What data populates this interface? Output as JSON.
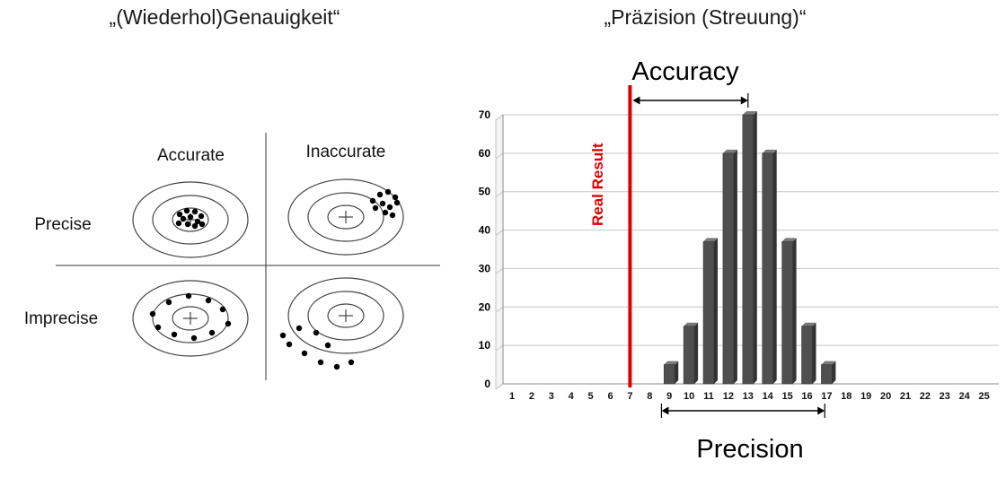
{
  "left_panel": {
    "title": "„(Wiederhol)Genauigkeit“",
    "columns": [
      {
        "label": "Accurate"
      },
      {
        "label": "Inaccurate"
      }
    ],
    "rows": [
      {
        "label": "Precise"
      },
      {
        "label": "Imprecise"
      }
    ],
    "targets": [
      {
        "name": "precise-accurate",
        "dots": [
          [
            -12,
            -6
          ],
          [
            -4,
            -10
          ],
          [
            5,
            -9
          ],
          [
            12,
            -4
          ],
          [
            -8,
            -1
          ],
          [
            0,
            -3
          ],
          [
            8,
            2
          ],
          [
            -13,
            4
          ],
          [
            -3,
            5
          ],
          [
            5,
            7
          ],
          [
            13,
            5
          ]
        ]
      },
      {
        "name": "precise-inaccurate",
        "dots": [
          [
            30,
            -18
          ],
          [
            38,
            -25
          ],
          [
            47,
            -28
          ],
          [
            55,
            -22
          ],
          [
            33,
            -10
          ],
          [
            41,
            -15
          ],
          [
            49,
            -11
          ],
          [
            57,
            -16
          ],
          [
            44,
            -5
          ],
          [
            52,
            -2
          ]
        ]
      },
      {
        "name": "imprecise-accurate",
        "dots": [
          [
            -42,
            -5
          ],
          [
            -24,
            -18
          ],
          [
            -2,
            -25
          ],
          [
            20,
            -20
          ],
          [
            36,
            -10
          ],
          [
            42,
            6
          ],
          [
            24,
            16
          ],
          [
            4,
            22
          ],
          [
            -18,
            18
          ],
          [
            -36,
            10
          ]
        ]
      },
      {
        "name": "imprecise-inaccurate",
        "dots": [
          [
            -52,
            14
          ],
          [
            -33,
            19
          ],
          [
            -63,
            32
          ],
          [
            -46,
            42
          ],
          [
            -28,
            52
          ],
          [
            -10,
            57
          ],
          [
            6,
            52
          ],
          [
            -20,
            33
          ],
          [
            -70,
            22
          ]
        ]
      }
    ]
  },
  "right_panel": {
    "title": "„Präzision (Streuung)“",
    "accuracy_label": "Accuracy",
    "precision_label": "Precision",
    "real_result_label": "Real Result"
  },
  "chart_data": {
    "type": "bar",
    "title": "„Präzision (Streuung)“",
    "categories": [
      1,
      2,
      3,
      4,
      5,
      6,
      7,
      8,
      9,
      10,
      11,
      12,
      13,
      14,
      15,
      16,
      17,
      18,
      19,
      20,
      21,
      22,
      23,
      24,
      25
    ],
    "values": [
      0,
      0,
      0,
      0,
      0,
      0,
      0,
      0,
      5,
      15,
      37,
      60,
      70,
      60,
      37,
      15,
      5,
      0,
      0,
      0,
      0,
      0,
      0,
      0,
      0
    ],
    "xlabel": "",
    "ylabel": "",
    "ylim": [
      0,
      70
    ],
    "yticks": [
      0,
      10,
      20,
      30,
      40,
      50,
      60,
      70
    ],
    "grid": true,
    "legend": false,
    "bar_color": "#4f4f4f",
    "gridline_color": "#c6c6c6",
    "annotations": {
      "real_result": {
        "label": "Real Result",
        "x": 7,
        "color": "#dd0000"
      },
      "accuracy_arrow": {
        "label": "Accuracy",
        "from_x": 7,
        "to_x": 13
      },
      "precision_arrow": {
        "label": "Precision",
        "from_x": 8.6,
        "to_x": 16.9
      }
    }
  }
}
